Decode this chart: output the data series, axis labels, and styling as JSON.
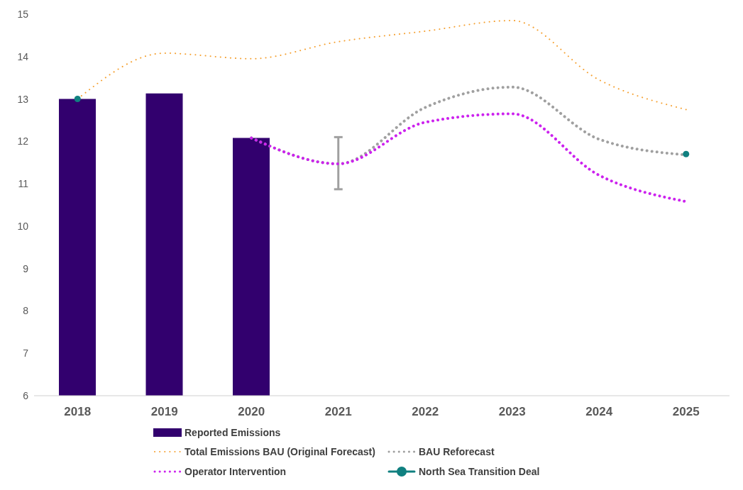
{
  "chart_data": {
    "type": "bar",
    "categories": [
      "2018",
      "2019",
      "2020",
      "2021",
      "2022",
      "2023",
      "2024",
      "2025"
    ],
    "ylim": [
      6,
      15
    ],
    "yticks": [
      6,
      7,
      8,
      9,
      10,
      11,
      12,
      13,
      14,
      15
    ],
    "grid": false,
    "legend": "bottom",
    "series": [
      {
        "name": "Reported Emissions",
        "color": "#32006e",
        "values": [
          13.0,
          13.13,
          12.08,
          null,
          null,
          null,
          null,
          null
        ]
      },
      {
        "name": "Total Emissions BAU (Original Forecast)",
        "type": "line",
        "color": "#f5a030",
        "line_style": "dotted",
        "marker": "none",
        "values": [
          13.0,
          14.08,
          13.95,
          14.35,
          14.6,
          14.85,
          13.45,
          12.75
        ]
      },
      {
        "name": "BAU Reforecast",
        "type": "line",
        "color": "#a0a0a0",
        "line_style": "dotted",
        "marker": "none",
        "values": [
          null,
          null,
          12.08,
          11.47,
          12.8,
          13.28,
          12.05,
          11.68
        ],
        "errors": [
          null,
          null,
          null,
          [
            10.87,
            12.1
          ],
          null,
          null,
          null,
          null
        ]
      },
      {
        "name": "Operator Intervention",
        "type": "line",
        "color": "#cc22ee",
        "line_style": "dotted",
        "marker": "none",
        "values": [
          null,
          null,
          12.08,
          11.47,
          12.45,
          12.65,
          11.2,
          10.58
        ]
      },
      {
        "name": "North Sea Transition Deal",
        "type": "scatter",
        "color": "#108080",
        "marker": "circle",
        "values": [
          13.0,
          null,
          null,
          null,
          null,
          null,
          null,
          11.7
        ]
      }
    ]
  }
}
